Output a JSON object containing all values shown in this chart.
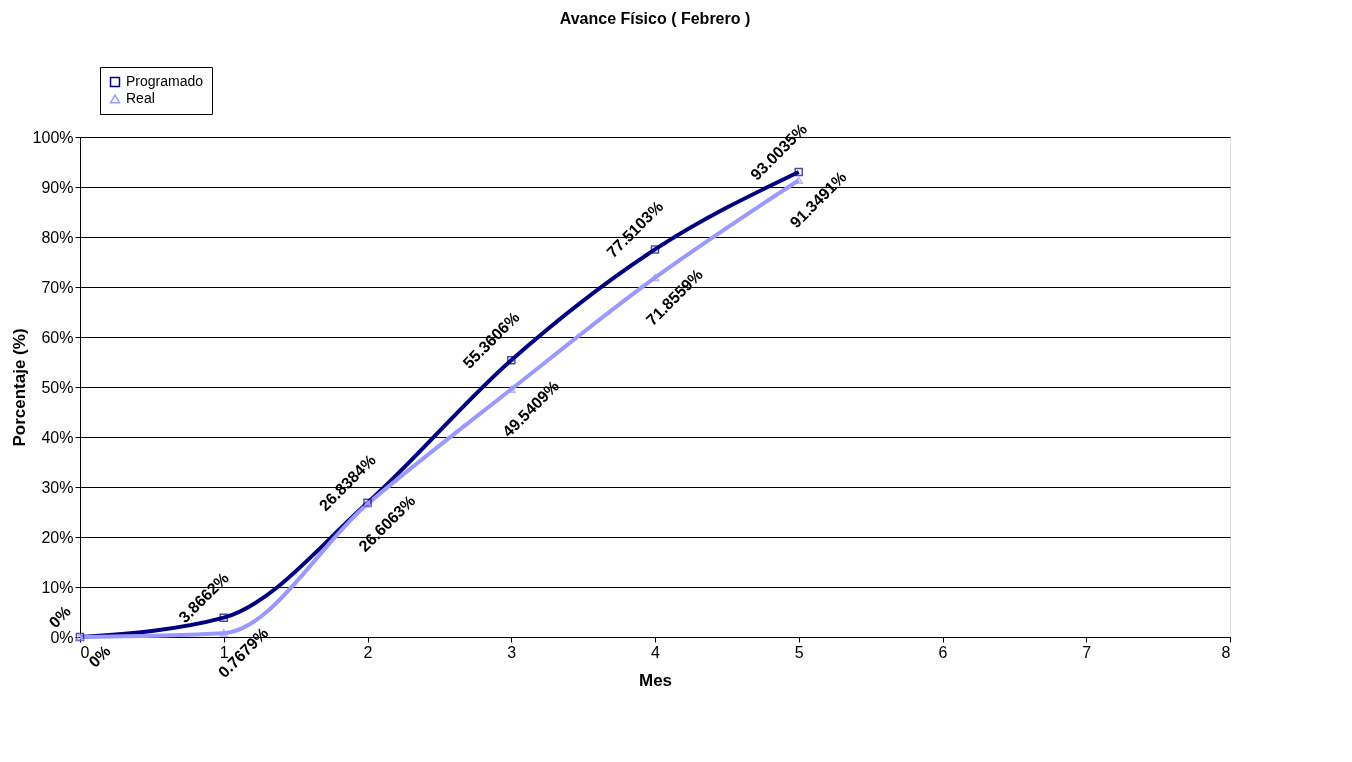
{
  "chart_data": {
    "type": "line",
    "title": "Avance Físico ( Febrero )",
    "xlabel": "Mes",
    "ylabel": "Porcentaje (%)",
    "x": [
      0,
      1,
      2,
      3,
      4,
      5
    ],
    "series": [
      {
        "name": "Programado",
        "color": "#000080",
        "marker": "square",
        "values": [
          0,
          3.8662,
          26.8384,
          55.3606,
          77.5103,
          93.0035
        ],
        "value_labels": [
          "0%",
          "3.8662%",
          "26.8384%",
          "55.3606%",
          "77.5103%",
          "93.0035%"
        ]
      },
      {
        "name": "Real",
        "color": "#9999ff",
        "marker": "triangle",
        "values": [
          0,
          0.7679,
          26.6063,
          49.5409,
          71.8559,
          91.3491
        ],
        "value_labels": [
          "0%",
          "0.7679%",
          "26.6063%",
          "49.5409%",
          "71.8559%",
          "91.3491%"
        ]
      }
    ],
    "xlim": [
      0,
      8
    ],
    "xticks": [
      0,
      1,
      2,
      3,
      4,
      5,
      6,
      7,
      8
    ],
    "ylim": [
      0,
      100
    ],
    "yticks": [
      {
        "value": 0,
        "label": "0%"
      },
      {
        "value": 10,
        "label": "10%"
      },
      {
        "value": 20,
        "label": "20%"
      },
      {
        "value": 30,
        "label": "30%"
      },
      {
        "value": 40,
        "label": "40%"
      },
      {
        "value": 50,
        "label": "50%"
      },
      {
        "value": 60,
        "label": "60%"
      },
      {
        "value": 70,
        "label": "70%"
      },
      {
        "value": 80,
        "label": "80%"
      },
      {
        "value": 90,
        "label": "90%"
      },
      {
        "value": 100,
        "label": "100%"
      }
    ],
    "grid": "y",
    "legend": "top left",
    "line_style": "solid"
  }
}
